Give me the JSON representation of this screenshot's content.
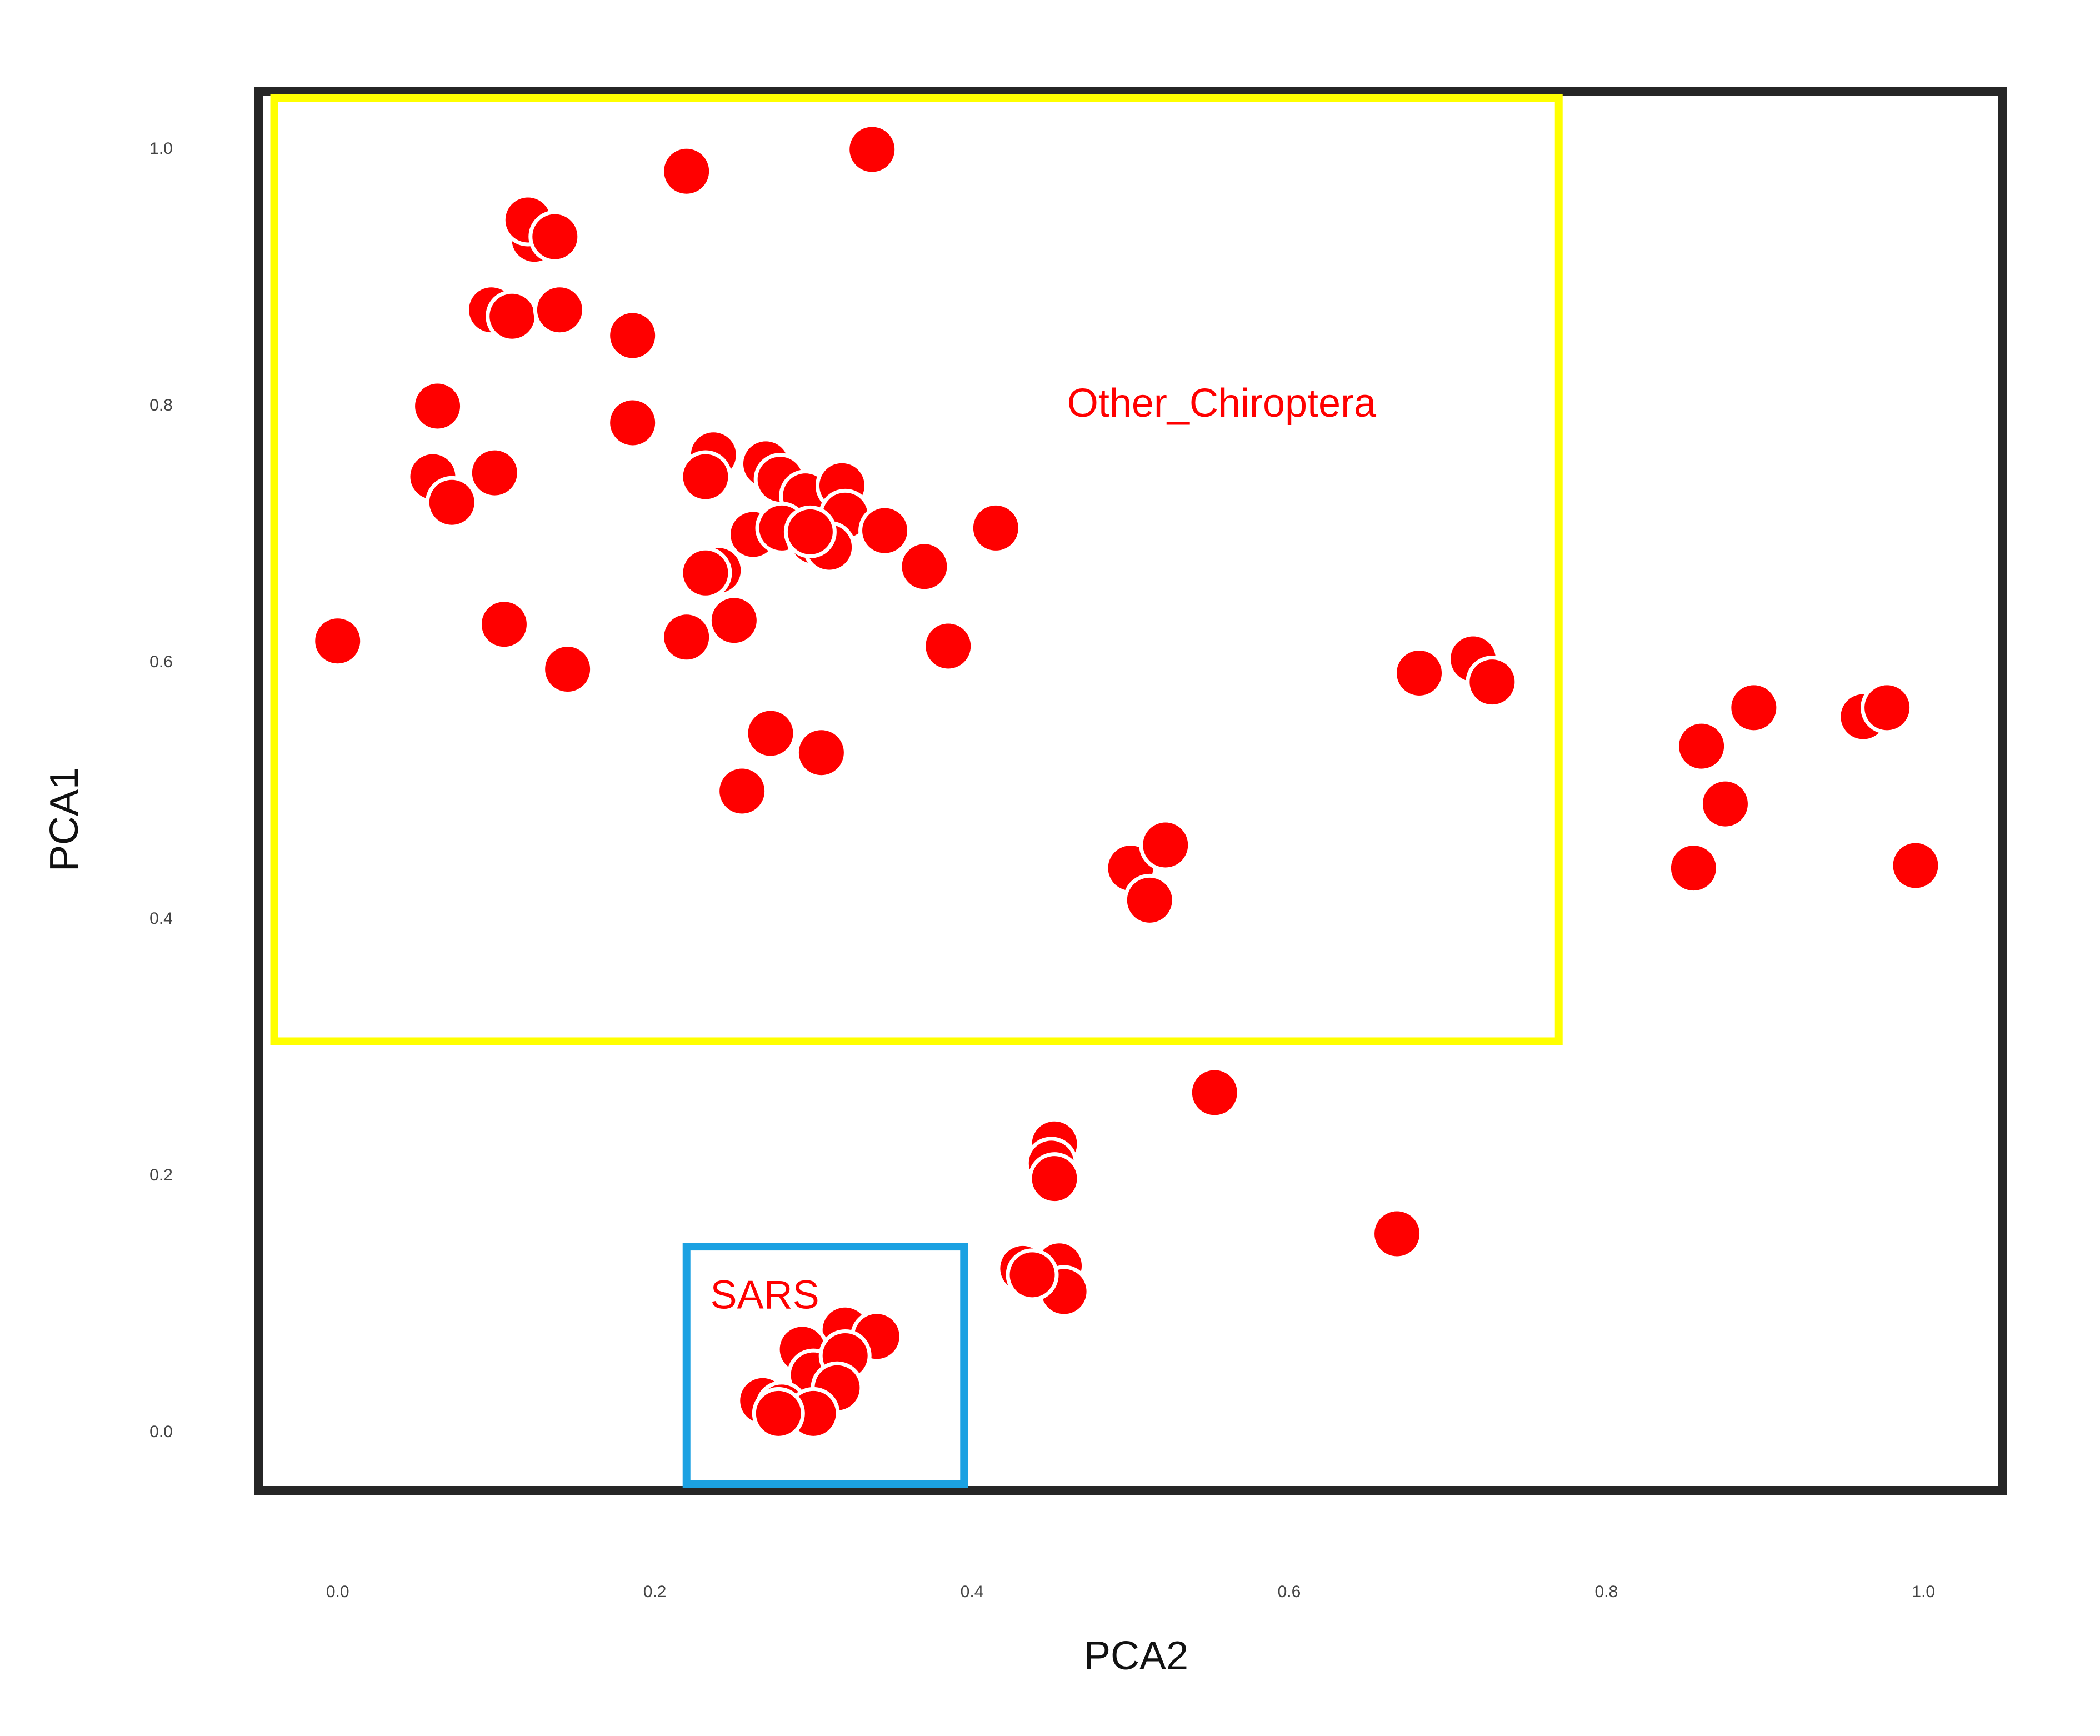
{
  "chart_data": {
    "type": "scatter",
    "title": "",
    "xlabel": "PCA2",
    "ylabel": "PCA1",
    "xlim": [
      -0.05,
      1.05
    ],
    "ylim": [
      -0.045,
      1.045
    ],
    "grid": false,
    "xticks": [
      "0.0",
      "0.2",
      "0.4",
      "0.6",
      "0.8",
      "1.0"
    ],
    "yticks": [
      "0.0",
      "0.2",
      "0.4",
      "0.6",
      "0.8",
      "1.0"
    ],
    "annotations": [
      {
        "text": "Other_Chiroptera",
        "color": "#ff0000",
        "x": 0.46,
        "y": 0.8
      },
      {
        "text": "SARS",
        "color": "#ff0000",
        "x": 0.235,
        "y": 0.105
      }
    ],
    "regions": [
      {
        "color": "#ffff00",
        "x0": -0.04,
        "x1": 0.77,
        "y0": 0.305,
        "y1": 1.04
      },
      {
        "color": "#1ba1e2",
        "x0": 0.22,
        "x1": 0.395,
        "y0": -0.04,
        "y1": 0.145
      }
    ],
    "series": [
      {
        "color": "#ff0000",
        "x": [
          0.0,
          0.22,
          0.337,
          0.124,
          0.12,
          0.137,
          0.097,
          0.11,
          0.14,
          0.186,
          0.063,
          0.186,
          0.06,
          0.072,
          0.099,
          0.237,
          0.232,
          0.27,
          0.279,
          0.295,
          0.318,
          0.32,
          0.345,
          0.262,
          0.28,
          0.3,
          0.31,
          0.298,
          0.415,
          0.24,
          0.232,
          0.37,
          0.22,
          0.25,
          0.105,
          0.145,
          0.385,
          0.273,
          0.305,
          0.255,
          0.682,
          0.716,
          0.728,
          0.5,
          0.522,
          0.512,
          0.86,
          0.893,
          0.875,
          0.855,
          0.962,
          0.977,
          0.995,
          0.553,
          0.452,
          0.45,
          0.452,
          0.432,
          0.455,
          0.458,
          0.438,
          0.668,
          0.32,
          0.34,
          0.293,
          0.3,
          0.32,
          0.315,
          0.268,
          0.28,
          0.3,
          0.278
        ],
        "y": [
          0.617,
          0.983,
          1.0,
          0.93,
          0.945,
          0.932,
          0.875,
          0.87,
          0.875,
          0.855,
          0.8,
          0.787,
          0.745,
          0.725,
          0.748,
          0.762,
          0.745,
          0.755,
          0.743,
          0.73,
          0.738,
          0.715,
          0.703,
          0.7,
          0.705,
          0.695,
          0.69,
          0.702,
          0.705,
          0.672,
          0.67,
          0.675,
          0.62,
          0.633,
          0.63,
          0.595,
          0.613,
          0.545,
          0.53,
          0.5,
          0.592,
          0.603,
          0.585,
          0.44,
          0.458,
          0.415,
          0.535,
          0.565,
          0.49,
          0.44,
          0.558,
          0.565,
          0.442,
          0.265,
          0.225,
          0.21,
          0.198,
          0.128,
          0.13,
          0.11,
          0.123,
          0.155,
          0.08,
          0.075,
          0.065,
          0.045,
          0.06,
          0.035,
          0.025,
          0.02,
          0.015,
          0.015
        ]
      }
    ]
  }
}
